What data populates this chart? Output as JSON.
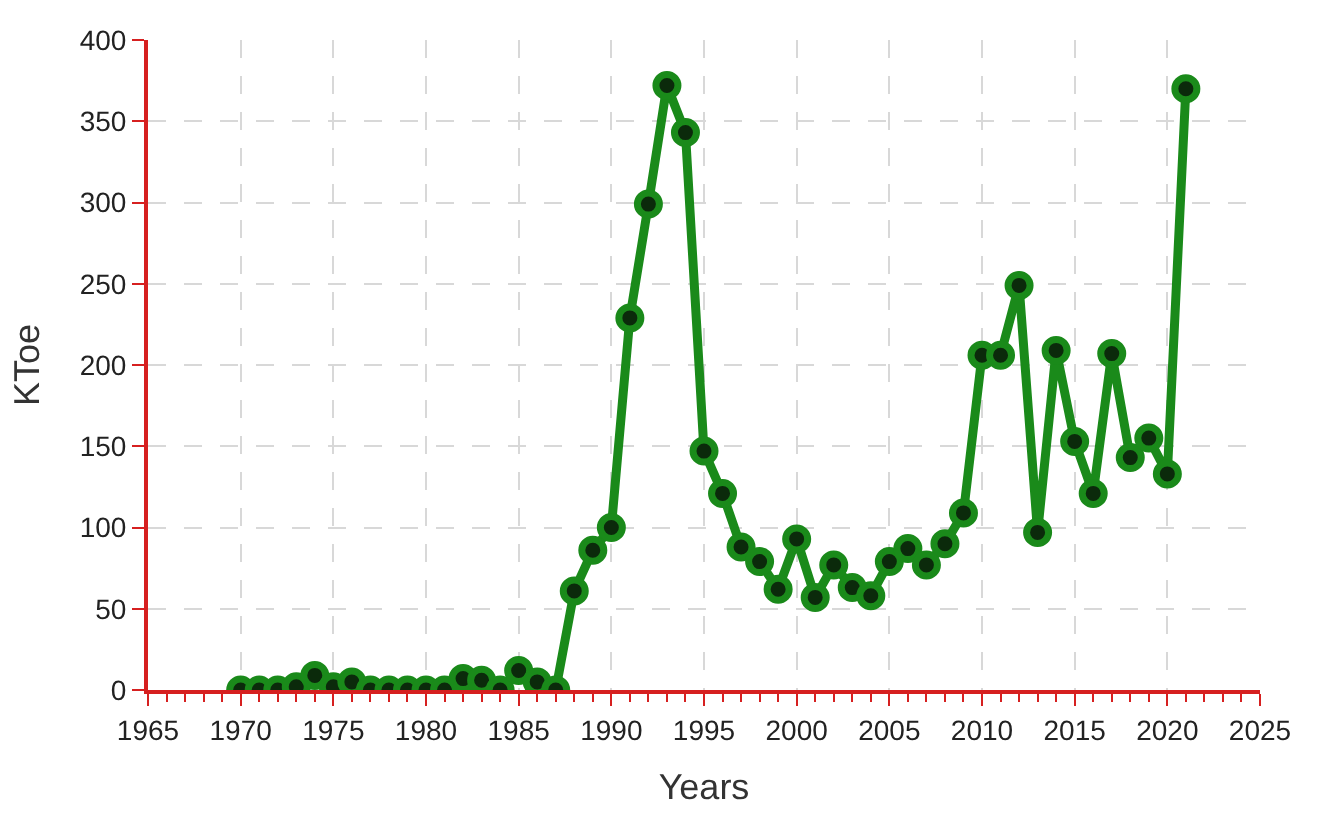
{
  "chart_data": {
    "type": "line",
    "xlabel": "Years",
    "ylabel": "KToe",
    "x": [
      1970,
      1971,
      1972,
      1973,
      1974,
      1975,
      1976,
      1977,
      1978,
      1979,
      1980,
      1981,
      1982,
      1983,
      1984,
      1985,
      1986,
      1987,
      1988,
      1989,
      1990,
      1991,
      1992,
      1993,
      1994,
      1995,
      1996,
      1997,
      1998,
      1999,
      2000,
      2001,
      2002,
      2003,
      2004,
      2005,
      2006,
      2007,
      2008,
      2009,
      2010,
      2011,
      2012,
      2013,
      2014,
      2015,
      2016,
      2017,
      2018,
      2019,
      2020,
      2021
    ],
    "series": [
      {
        "color": "#1a8a1a",
        "values": [
          0,
          0,
          0,
          2,
          9,
          2,
          5,
          0,
          0,
          0,
          0,
          0,
          7,
          6,
          0,
          12,
          5,
          0,
          61,
          86,
          100,
          229,
          299,
          372,
          343,
          147,
          121,
          88,
          79,
          62,
          93,
          57,
          77,
          63,
          58,
          79,
          87,
          77,
          90,
          109,
          206,
          206,
          249,
          97,
          209,
          153,
          121,
          207,
          143,
          155,
          133,
          370
        ]
      }
    ],
    "xlim": [
      1965,
      2025
    ],
    "xticks": [
      1965,
      1970,
      1975,
      1980,
      1985,
      1990,
      1995,
      2000,
      2005,
      2010,
      2015,
      2020,
      2025
    ],
    "ylim": [
      0,
      400
    ],
    "yticks": [
      0,
      50,
      100,
      150,
      200,
      250,
      300,
      350,
      400
    ],
    "grid": true,
    "marker": "circle",
    "line_style": "solid"
  }
}
